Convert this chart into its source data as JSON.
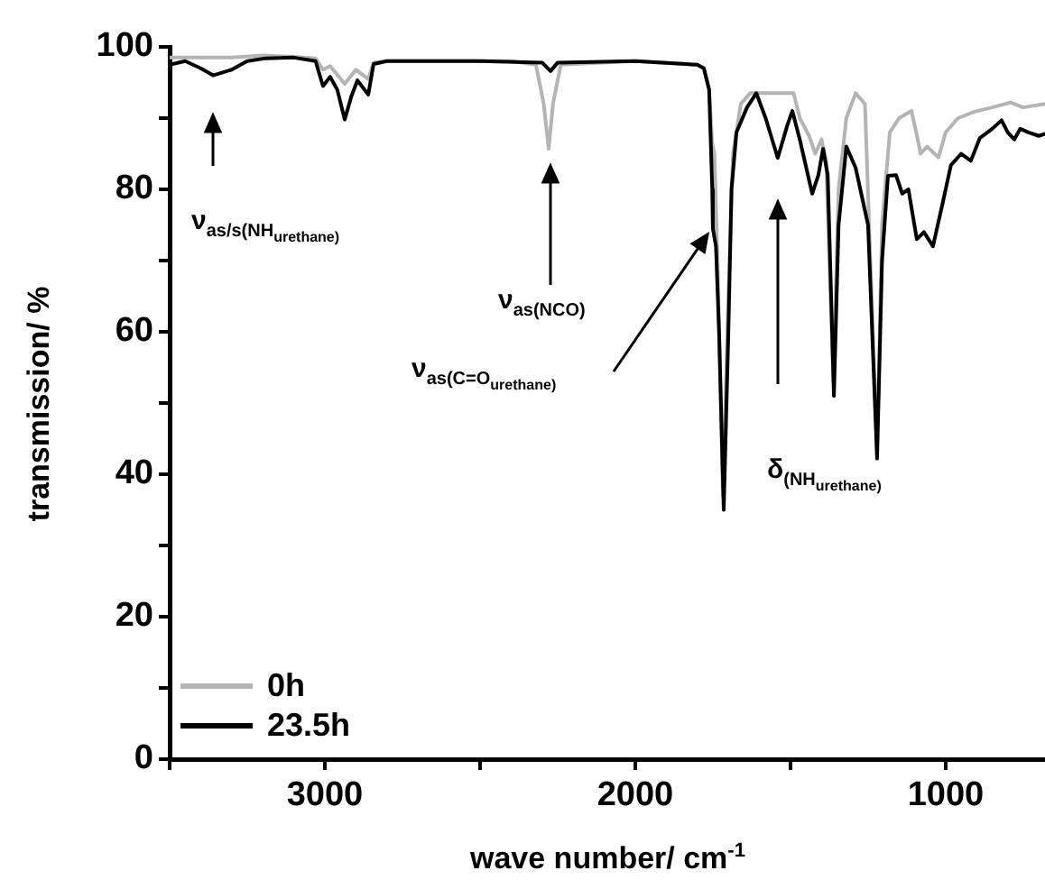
{
  "chart_data": {
    "type": "line",
    "xlabel": "wave number/ cm$^{-1}$",
    "ylabel": "transmission/ %",
    "xlim": [
      3500,
      680
    ],
    "ylim": [
      0,
      100
    ],
    "xticks": [
      {
        "value": 3500,
        "label": null
      },
      3000,
      {
        "value": 2500,
        "label": null
      },
      2000,
      {
        "value": 1500,
        "label": null
      },
      1000
    ],
    "yticks": [
      0,
      {
        "value": 10,
        "label": null
      },
      20,
      {
        "value": 30,
        "label": null
      },
      40,
      {
        "value": 50,
        "label": null
      },
      60,
      {
        "value": 70,
        "label": null
      },
      80,
      {
        "value": 90,
        "label": null
      },
      100
    ],
    "grid": false,
    "legend": "bottom left",
    "marker": "none",
    "line_style": "solid",
    "series": [
      {
        "name": "0h",
        "color": "#b4b4b4",
        "x": [
          3500,
          3400,
          3300,
          3200,
          3100,
          3030,
          3006,
          2983,
          2936,
          2900,
          2860,
          2843,
          2800,
          2400,
          2320,
          2295,
          2279,
          2265,
          2240,
          2000,
          1800,
          1779,
          1762,
          1752,
          1745,
          1735,
          1718,
          1700,
          1685,
          1660,
          1630,
          1490,
          1470,
          1440,
          1420,
          1400,
          1385,
          1362,
          1345,
          1320,
          1290,
          1260,
          1221,
          1205,
          1180,
          1150,
          1110,
          1090,
          1081,
          1060,
          1023,
          1000,
          960,
          907,
          850,
          791,
          750,
          680
        ],
        "values": [
          98.5,
          98.5,
          98.5,
          98.8,
          98.6,
          98.4,
          96.8,
          97.3,
          94.8,
          96.8,
          95.5,
          97.8,
          98,
          98,
          97.5,
          92,
          85.7,
          92,
          97.5,
          98,
          97.5,
          97,
          94,
          86.5,
          85,
          70,
          37,
          65,
          85,
          92,
          93.5,
          93.5,
          90,
          87.5,
          85,
          87,
          84,
          53,
          80,
          90,
          93.5,
          92,
          43,
          75,
          88,
          90,
          91,
          87,
          85,
          86,
          84.5,
          88,
          90,
          90.9,
          91.5,
          92.2,
          91.5,
          92
        ]
      },
      {
        "name": "23.5h",
        "color": "#000000",
        "x": [
          3500,
          3450,
          3400,
          3360,
          3300,
          3250,
          3190,
          3100,
          3030,
          3006,
          2983,
          2960,
          2936,
          2915,
          2895,
          2860,
          2843,
          2800,
          2500,
          2300,
          2273,
          2250,
          2000,
          1800,
          1779,
          1762,
          1752,
          1750,
          1740,
          1730,
          1715,
          1700,
          1690,
          1674,
          1640,
          1610,
          1580,
          1541,
          1510,
          1494,
          1470,
          1430,
          1410,
          1395,
          1380,
          1360,
          1345,
          1320,
          1290,
          1250,
          1221,
          1205,
          1186,
          1160,
          1140,
          1120,
          1093,
          1070,
          1041,
          1010,
          983,
          950,
          919,
          890,
          850,
          820,
          800,
          779,
          760,
          733,
          700,
          680
        ],
        "values": [
          97.5,
          98,
          97,
          96,
          96.8,
          98,
          98.4,
          98.5,
          98,
          94.5,
          95.8,
          94,
          89.8,
          93,
          95.3,
          93.3,
          97.6,
          98,
          98,
          97.8,
          96.6,
          97.8,
          98,
          97.5,
          97,
          94,
          80,
          74.5,
          72,
          60,
          35,
          60,
          80,
          88,
          91.5,
          93.5,
          90,
          84.4,
          89,
          91,
          87,
          79.4,
          82,
          85.7,
          82,
          51,
          75,
          86,
          83,
          75,
          42.2,
          70,
          81.9,
          82,
          79.4,
          80,
          73,
          74,
          72,
          78,
          83.4,
          85,
          84,
          87.2,
          88.5,
          89.7,
          88,
          87,
          88.5,
          88,
          87.5,
          87.8
        ]
      }
    ],
    "annotations": [
      "ν$_{as/s(NH}$$_{urethane}$$_{)}$",
      "ν$_{as(NCO)}$",
      "ν$_{as(C=O}$$_{urethane}$$_{)}$",
      "δ$_{(NH}$$_{urethane}$$_{)}$"
    ]
  }
}
